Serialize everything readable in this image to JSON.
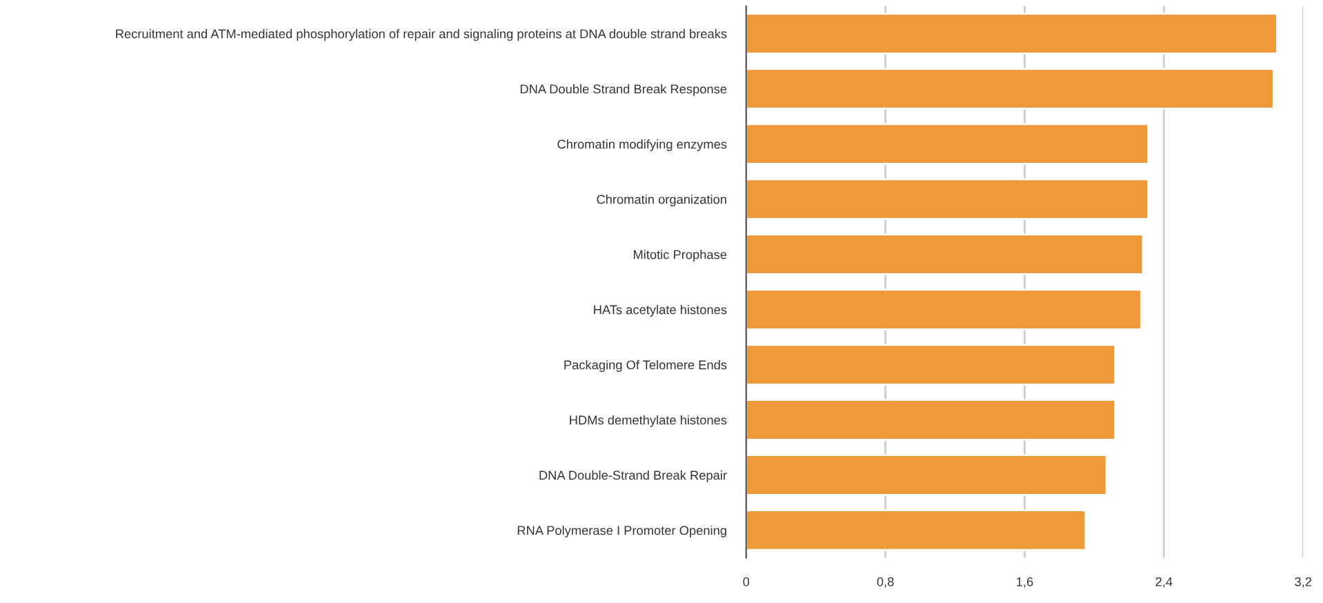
{
  "chart_data": {
    "type": "bar",
    "orientation": "horizontal",
    "categories": [
      "Recruitment and ATM-mediated phosphorylation of repair and signaling proteins at DNA double strand breaks",
      "DNA Double Strand Break Response",
      "Chromatin modifying enzymes",
      "Chromatin organization",
      "Mitotic Prophase",
      "HATs acetylate histones",
      "Packaging Of Telomere Ends",
      "HDMs demethylate histones",
      "DNA Double-Strand Break Repair",
      "RNA Polymerase I Promoter Opening"
    ],
    "values": [
      3.05,
      3.03,
      2.31,
      2.31,
      2.28,
      2.27,
      2.12,
      2.12,
      2.07,
      1.95
    ],
    "color": "#ef9a3a",
    "xlim": [
      0,
      3.2
    ],
    "xticks": [
      0,
      {
        "value": 0.8,
        "label": "0,8"
      },
      {
        "value": 1.6,
        "label": "1,6"
      },
      {
        "value": 2.4,
        "label": "2,4"
      },
      {
        "value": 3.2,
        "label": "3,2"
      }
    ],
    "grid": "x",
    "legend": false
  }
}
